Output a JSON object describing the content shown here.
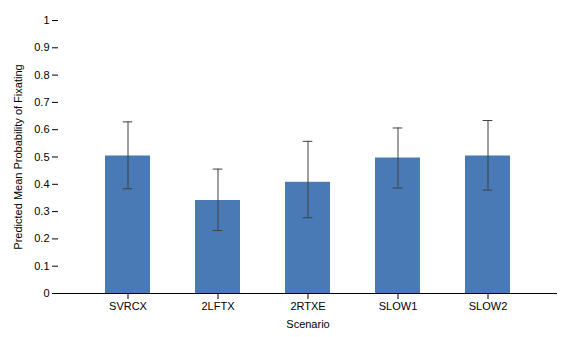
{
  "chart_data": {
    "type": "bar",
    "categories": [
      "SVRCX",
      "2LFTX",
      "2RTXE",
      "SLOW1",
      "SLOW2"
    ],
    "values": [
      0.5037,
      0.3407,
      0.4074,
      0.4963,
      0.5037
    ],
    "errors_upper": [
      0.125,
      0.115,
      0.15,
      0.11,
      0.13
    ],
    "errors_lower": [
      0.12,
      0.11,
      0.13,
      0.11,
      0.125
    ],
    "color": "#4a7ab5",
    "xlabel": "Scenario",
    "ylabel": "Predicted Mean Probability of Fixating",
    "ylim": [
      0,
      1.0
    ],
    "yticks": [
      0,
      0.1,
      0.2,
      0.3,
      0.4,
      0.5,
      0.6,
      0.7,
      0.8,
      0.9,
      1
    ],
    "grid": false
  }
}
